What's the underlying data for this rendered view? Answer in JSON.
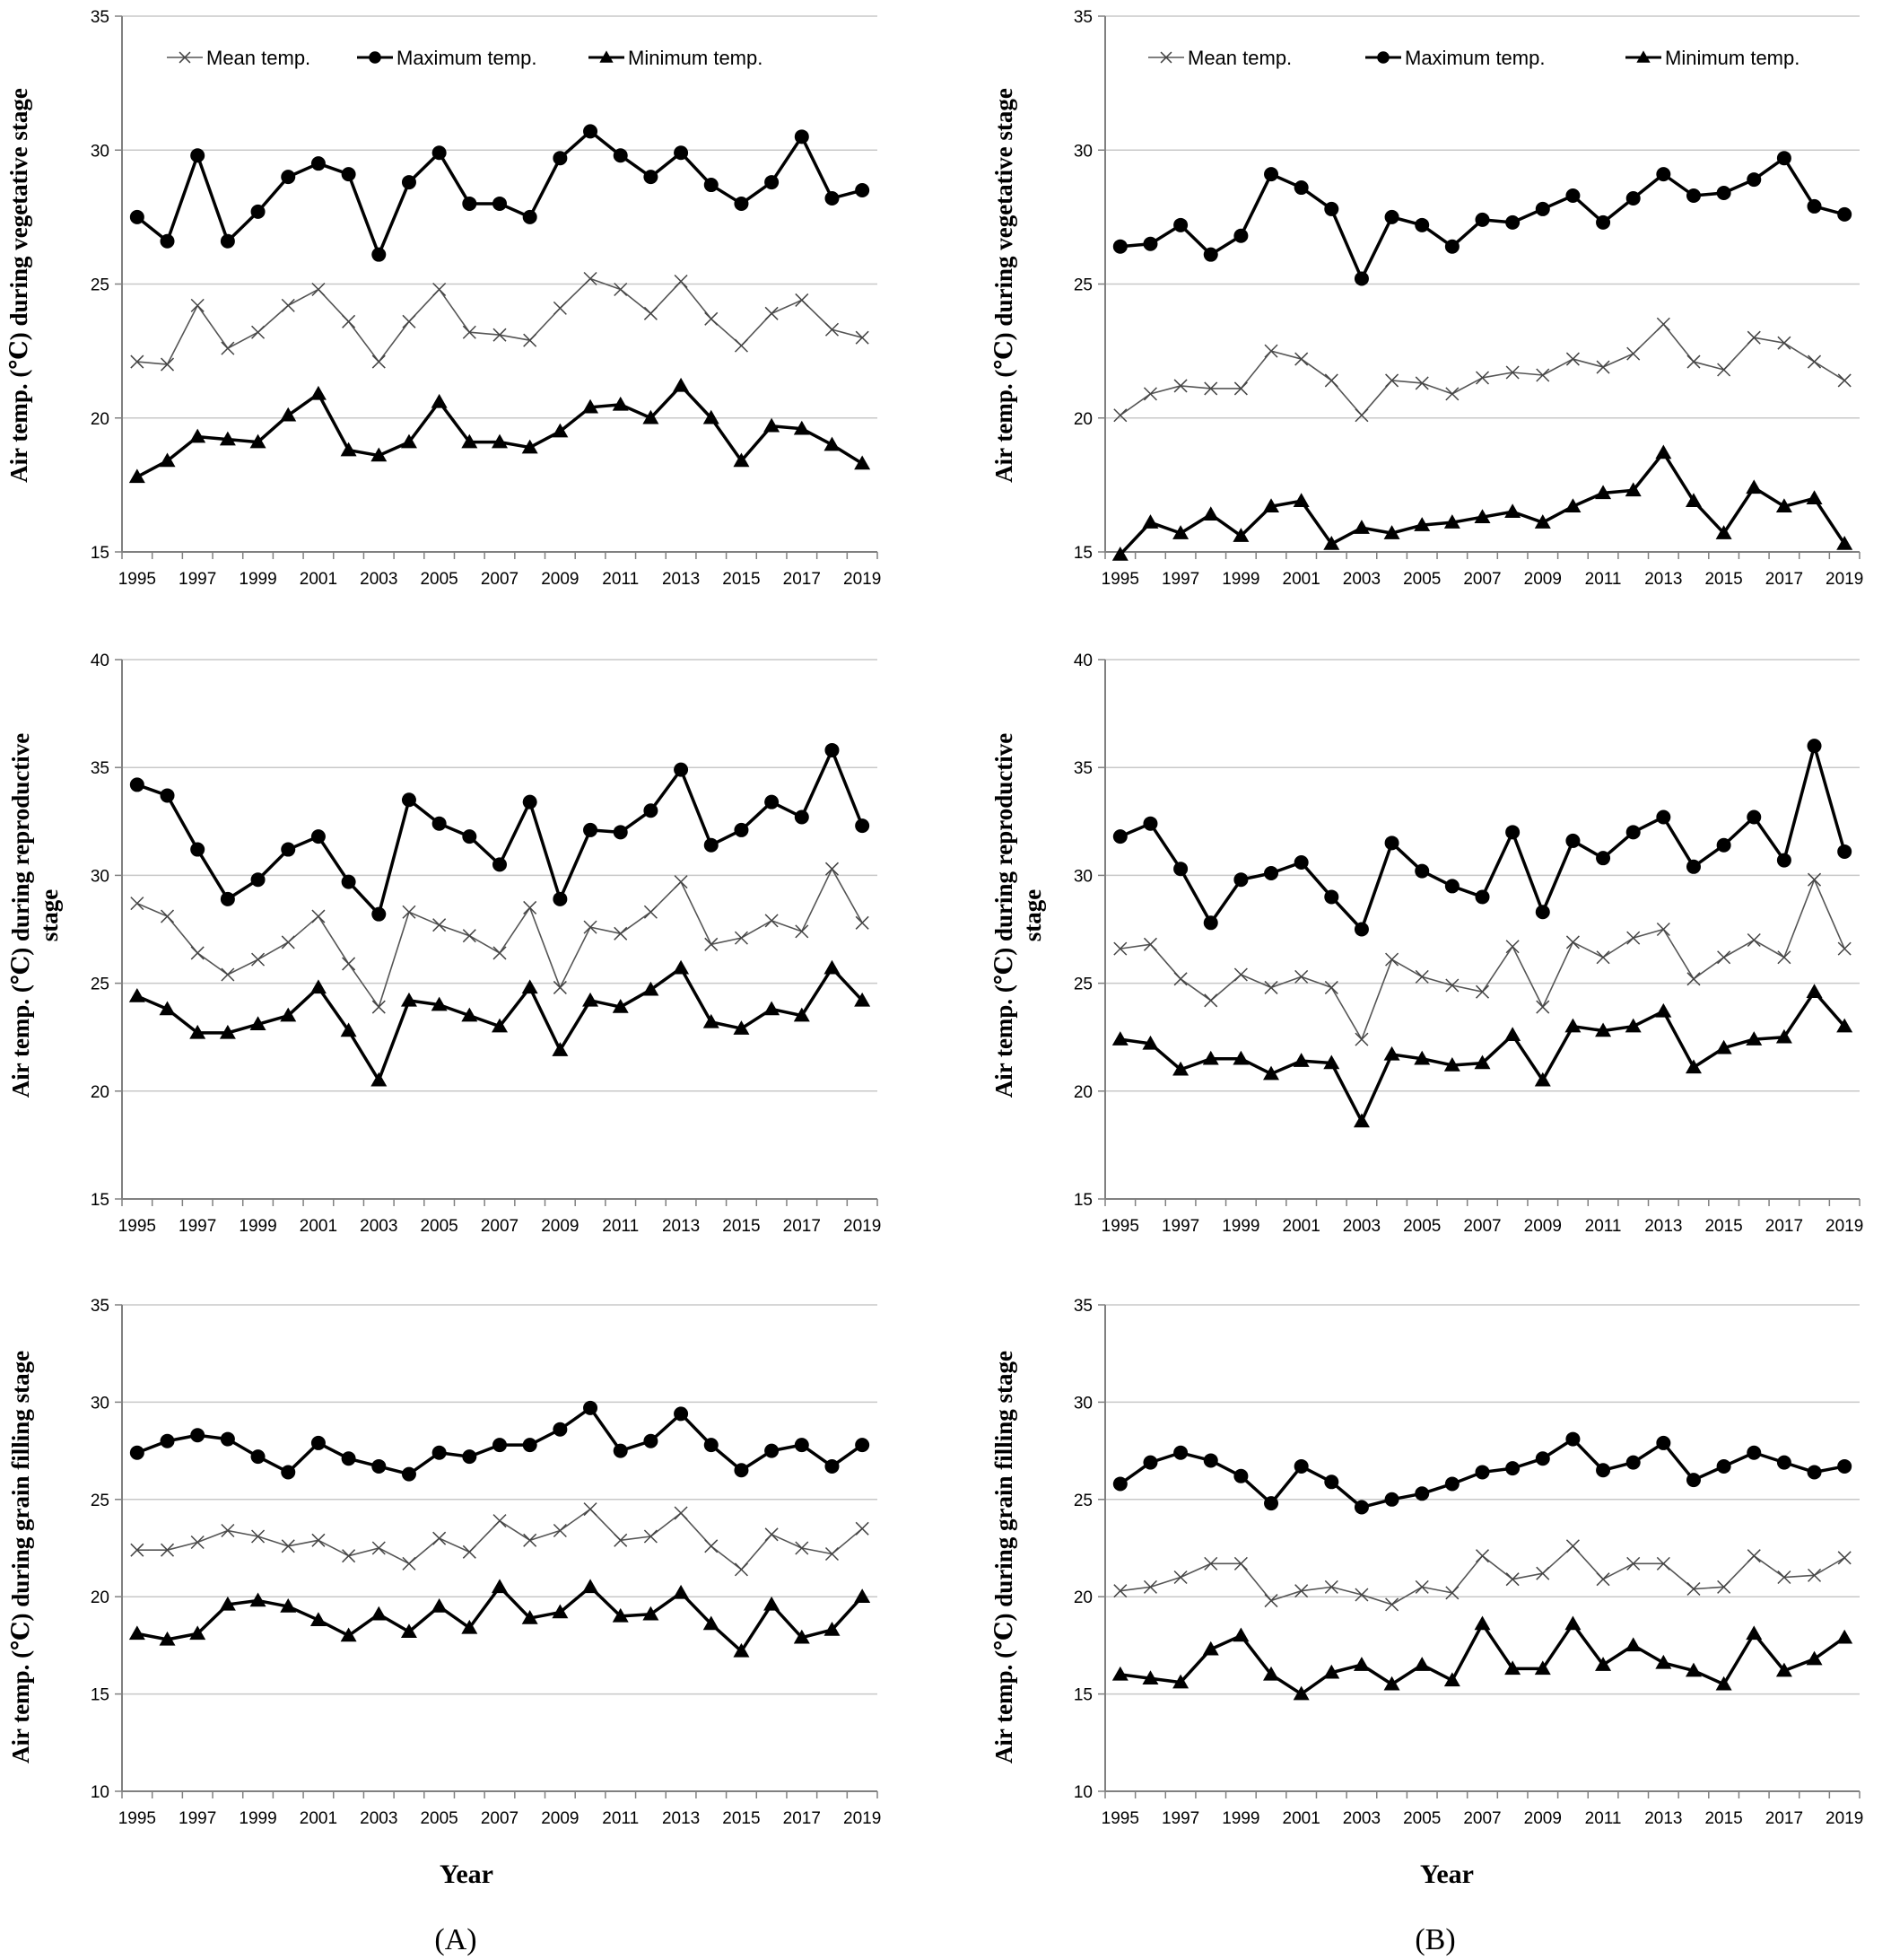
{
  "figure": {
    "panel_labels": [
      "(A)",
      "(B)"
    ],
    "xlabel": "Year"
  },
  "legend_labels": [
    "Mean temp.",
    "Maximum temp.",
    "Minimum temp."
  ],
  "chart_data": [
    {
      "type": "line",
      "panel": "A",
      "row": 1,
      "ylabel": [
        "Air temp. (℃) during vegetative stage"
      ],
      "ylim": [
        15,
        35
      ],
      "yticks": [
        15,
        20,
        25,
        30,
        35
      ],
      "x": [
        1995,
        1996,
        1997,
        1998,
        1999,
        2000,
        2001,
        2002,
        2003,
        2004,
        2005,
        2006,
        2007,
        2008,
        2009,
        2010,
        2011,
        2012,
        2013,
        2014,
        2015,
        2016,
        2017,
        2018,
        2019
      ],
      "xticks": [
        "1995",
        "1997",
        "1999",
        "2001",
        "2003",
        "2005",
        "2007",
        "2009",
        "2011",
        "2013",
        "2015",
        "2017",
        "2019"
      ],
      "grid": true,
      "legend": "top",
      "series": [
        {
          "name": "Mean temp.",
          "marker": "x",
          "values": [
            22.1,
            22.0,
            24.2,
            22.6,
            23.2,
            24.2,
            24.8,
            23.6,
            22.1,
            23.6,
            24.8,
            23.2,
            23.1,
            22.9,
            24.1,
            25.2,
            24.8,
            23.9,
            25.1,
            23.7,
            22.7,
            23.9,
            24.4,
            23.3,
            23.0
          ]
        },
        {
          "name": "Maximum temp.",
          "marker": "circle",
          "values": [
            27.5,
            26.6,
            29.8,
            26.6,
            27.7,
            29.0,
            29.5,
            29.1,
            26.1,
            28.8,
            29.9,
            28.0,
            28.0,
            27.5,
            29.7,
            30.7,
            29.8,
            29.0,
            29.9,
            28.7,
            28.0,
            28.8,
            30.5,
            28.2,
            28.5
          ]
        },
        {
          "name": "Minimum temp.",
          "marker": "triangle",
          "values": [
            17.8,
            18.4,
            19.3,
            19.2,
            19.1,
            20.1,
            20.9,
            18.8,
            18.6,
            19.1,
            20.6,
            19.1,
            19.1,
            18.9,
            19.5,
            20.4,
            20.5,
            20.0,
            21.2,
            20.0,
            18.4,
            19.7,
            19.6,
            19.0,
            18.3
          ]
        }
      ]
    },
    {
      "type": "line",
      "panel": "B",
      "row": 1,
      "ylabel": [
        "Air temp. (℃) during vegetative stage"
      ],
      "ylim": [
        15,
        35
      ],
      "yticks": [
        15,
        20,
        25,
        30,
        35
      ],
      "x": [
        1995,
        1996,
        1997,
        1998,
        1999,
        2000,
        2001,
        2002,
        2003,
        2004,
        2005,
        2006,
        2007,
        2008,
        2009,
        2010,
        2011,
        2012,
        2013,
        2014,
        2015,
        2016,
        2017,
        2018,
        2019
      ],
      "xticks": [
        "1995",
        "1997",
        "1999",
        "2001",
        "2003",
        "2005",
        "2007",
        "2009",
        "2011",
        "2013",
        "2015",
        "2017",
        "2019"
      ],
      "grid": true,
      "legend": "top",
      "series": [
        {
          "name": "Mean temp.",
          "marker": "x",
          "values": [
            20.1,
            20.9,
            21.2,
            21.1,
            21.1,
            22.5,
            22.2,
            21.4,
            20.1,
            21.4,
            21.3,
            20.9,
            21.5,
            21.7,
            21.6,
            22.2,
            21.9,
            22.4,
            23.5,
            22.1,
            21.8,
            23.0,
            22.8,
            22.1,
            21.4
          ]
        },
        {
          "name": "Maximum temp.",
          "marker": "circle",
          "values": [
            26.4,
            26.5,
            27.2,
            26.1,
            26.8,
            29.1,
            28.6,
            27.8,
            25.2,
            27.5,
            27.2,
            26.4,
            27.4,
            27.3,
            27.8,
            28.3,
            27.3,
            28.2,
            29.1,
            28.3,
            28.4,
            28.9,
            29.7,
            27.9,
            27.6
          ]
        },
        {
          "name": "Minimum temp.",
          "marker": "triangle",
          "values": [
            14.9,
            16.1,
            15.7,
            16.4,
            15.6,
            16.7,
            16.9,
            15.3,
            15.9,
            15.7,
            16.0,
            16.1,
            16.3,
            16.5,
            16.1,
            16.7,
            17.2,
            17.3,
            18.7,
            16.9,
            15.7,
            17.4,
            16.7,
            17.0,
            15.3
          ]
        }
      ]
    },
    {
      "type": "line",
      "panel": "A",
      "row": 2,
      "ylabel": [
        "Air temp. (℃) during  reproductive",
        "stage"
      ],
      "ylim": [
        15,
        40
      ],
      "yticks": [
        15,
        20,
        25,
        30,
        35,
        40
      ],
      "x": [
        1995,
        1996,
        1997,
        1998,
        1999,
        2000,
        2001,
        2002,
        2003,
        2004,
        2005,
        2006,
        2007,
        2008,
        2009,
        2010,
        2011,
        2012,
        2013,
        2014,
        2015,
        2016,
        2017,
        2018,
        2019
      ],
      "xticks": [
        "1995",
        "1997",
        "1999",
        "2001",
        "2003",
        "2005",
        "2007",
        "2009",
        "2011",
        "2013",
        "2015",
        "2017",
        "2019"
      ],
      "grid": true,
      "legend": "none",
      "series": [
        {
          "name": "Mean temp.",
          "marker": "x",
          "values": [
            28.7,
            28.1,
            26.4,
            25.4,
            26.1,
            26.9,
            28.1,
            25.9,
            23.9,
            28.3,
            27.7,
            27.2,
            26.4,
            28.5,
            24.8,
            27.6,
            27.3,
            28.3,
            29.7,
            26.8,
            27.1,
            27.9,
            27.4,
            30.3,
            27.8
          ]
        },
        {
          "name": "Maximum temp.",
          "marker": "circle",
          "values": [
            34.2,
            33.7,
            31.2,
            28.9,
            29.8,
            31.2,
            31.8,
            29.7,
            28.2,
            33.5,
            32.4,
            31.8,
            30.5,
            33.4,
            28.9,
            32.1,
            32.0,
            33.0,
            34.9,
            31.4,
            32.1,
            33.4,
            32.7,
            35.8,
            32.3
          ]
        },
        {
          "name": "Minimum temp.",
          "marker": "triangle",
          "values": [
            24.4,
            23.8,
            22.7,
            22.7,
            23.1,
            23.5,
            24.8,
            22.8,
            20.5,
            24.2,
            24.0,
            23.5,
            23.0,
            24.8,
            21.9,
            24.2,
            23.9,
            24.7,
            25.7,
            23.2,
            22.9,
            23.8,
            23.5,
            25.7,
            24.2
          ]
        }
      ]
    },
    {
      "type": "line",
      "panel": "B",
      "row": 2,
      "ylabel": [
        "Air temp. (℃) during  reproductive",
        "stage"
      ],
      "ylim": [
        15,
        40
      ],
      "yticks": [
        15,
        20,
        25,
        30,
        35,
        40
      ],
      "x": [
        1995,
        1996,
        1997,
        1998,
        1999,
        2000,
        2001,
        2002,
        2003,
        2004,
        2005,
        2006,
        2007,
        2008,
        2009,
        2010,
        2011,
        2012,
        2013,
        2014,
        2015,
        2016,
        2017,
        2018,
        2019
      ],
      "xticks": [
        "1995",
        "1997",
        "1999",
        "2001",
        "2003",
        "2005",
        "2007",
        "2009",
        "2011",
        "2013",
        "2015",
        "2017",
        "2019"
      ],
      "grid": true,
      "legend": "none",
      "series": [
        {
          "name": "Mean temp.",
          "marker": "x",
          "values": [
            26.6,
            26.8,
            25.2,
            24.2,
            25.4,
            24.8,
            25.3,
            24.8,
            22.4,
            26.1,
            25.3,
            24.9,
            24.6,
            26.7,
            23.9,
            26.9,
            26.2,
            27.1,
            27.5,
            25.2,
            26.2,
            27.0,
            26.2,
            29.8,
            26.6
          ]
        },
        {
          "name": "Maximum temp.",
          "marker": "circle",
          "values": [
            31.8,
            32.4,
            30.3,
            27.8,
            29.8,
            30.1,
            30.6,
            29.0,
            27.5,
            31.5,
            30.2,
            29.5,
            29.0,
            32.0,
            28.3,
            31.6,
            30.8,
            32.0,
            32.7,
            30.4,
            31.4,
            32.7,
            30.7,
            36.0,
            31.1
          ]
        },
        {
          "name": "Minimum temp.",
          "marker": "triangle",
          "values": [
            22.4,
            22.2,
            21.0,
            21.5,
            21.5,
            20.8,
            21.4,
            21.3,
            18.6,
            21.7,
            21.5,
            21.2,
            21.3,
            22.6,
            20.5,
            23.0,
            22.8,
            23.0,
            23.7,
            21.1,
            22.0,
            22.4,
            22.5,
            24.6,
            23.0
          ]
        }
      ]
    },
    {
      "type": "line",
      "panel": "A",
      "row": 3,
      "ylabel": [
        "Air temp. (℃) during  grain filling stage"
      ],
      "ylim": [
        10,
        35
      ],
      "yticks": [
        10,
        15,
        20,
        25,
        30,
        35
      ],
      "x": [
        1995,
        1996,
        1997,
        1998,
        1999,
        2000,
        2001,
        2002,
        2003,
        2004,
        2005,
        2006,
        2007,
        2008,
        2009,
        2010,
        2011,
        2012,
        2013,
        2014,
        2015,
        2016,
        2017,
        2018,
        2019
      ],
      "xticks": [
        "1995",
        "1997",
        "1999",
        "2001",
        "2003",
        "2005",
        "2007",
        "2009",
        "2011",
        "2013",
        "2015",
        "2017",
        "2019"
      ],
      "grid": true,
      "legend": "none",
      "series": [
        {
          "name": "Mean temp.",
          "marker": "x",
          "values": [
            22.4,
            22.4,
            22.8,
            23.4,
            23.1,
            22.6,
            22.9,
            22.1,
            22.5,
            21.7,
            23.0,
            22.3,
            23.9,
            22.9,
            23.4,
            24.5,
            22.9,
            23.1,
            24.3,
            22.6,
            21.4,
            23.2,
            22.5,
            22.2,
            23.5
          ]
        },
        {
          "name": "Maximum temp.",
          "marker": "circle",
          "values": [
            27.4,
            28.0,
            28.3,
            28.1,
            27.2,
            26.4,
            27.9,
            27.1,
            26.7,
            26.3,
            27.4,
            27.2,
            27.8,
            27.8,
            28.6,
            29.7,
            27.5,
            28.0,
            29.4,
            27.8,
            26.5,
            27.5,
            27.8,
            26.7,
            27.8
          ]
        },
        {
          "name": "Minimum temp.",
          "marker": "triangle",
          "values": [
            18.1,
            17.8,
            18.1,
            19.6,
            19.8,
            19.5,
            18.8,
            18.0,
            19.1,
            18.2,
            19.5,
            18.4,
            20.5,
            18.9,
            19.2,
            20.5,
            19.0,
            19.1,
            20.2,
            18.6,
            17.2,
            19.6,
            17.9,
            18.3,
            20.0
          ]
        }
      ]
    },
    {
      "type": "line",
      "panel": "B",
      "row": 3,
      "ylabel": [
        "Air temp. (℃) during  grain filling stage"
      ],
      "ylim": [
        10,
        35
      ],
      "yticks": [
        10,
        15,
        20,
        25,
        30,
        35
      ],
      "x": [
        1995,
        1996,
        1997,
        1998,
        1999,
        2000,
        2001,
        2002,
        2003,
        2004,
        2005,
        2006,
        2007,
        2008,
        2009,
        2010,
        2011,
        2012,
        2013,
        2014,
        2015,
        2016,
        2017,
        2018,
        2019
      ],
      "xticks": [
        "1995",
        "1997",
        "1999",
        "2001",
        "2003",
        "2005",
        "2007",
        "2009",
        "2011",
        "2013",
        "2015",
        "2017",
        "2019"
      ],
      "grid": true,
      "legend": "none",
      "series": [
        {
          "name": "Mean temp.",
          "marker": "x",
          "values": [
            20.3,
            20.5,
            21.0,
            21.7,
            21.7,
            19.8,
            20.3,
            20.5,
            20.1,
            19.6,
            20.5,
            20.2,
            22.1,
            20.9,
            21.2,
            22.6,
            20.9,
            21.7,
            21.7,
            20.4,
            20.5,
            22.1,
            21.0,
            21.1,
            22.0
          ]
        },
        {
          "name": "Maximum temp.",
          "marker": "circle",
          "values": [
            25.8,
            26.9,
            27.4,
            27.0,
            26.2,
            24.8,
            26.7,
            25.9,
            24.6,
            25.0,
            25.3,
            25.8,
            26.4,
            26.6,
            27.1,
            28.1,
            26.5,
            26.9,
            27.9,
            26.0,
            26.7,
            27.4,
            26.9,
            26.4,
            26.7
          ]
        },
        {
          "name": "Minimum temp.",
          "marker": "triangle",
          "values": [
            16.0,
            15.8,
            15.6,
            17.3,
            18.0,
            16.0,
            15.0,
            16.1,
            16.5,
            15.5,
            16.5,
            15.7,
            18.6,
            16.3,
            16.3,
            18.6,
            16.5,
            17.5,
            16.6,
            16.2,
            15.5,
            18.1,
            16.2,
            16.8,
            17.9
          ]
        }
      ]
    }
  ]
}
